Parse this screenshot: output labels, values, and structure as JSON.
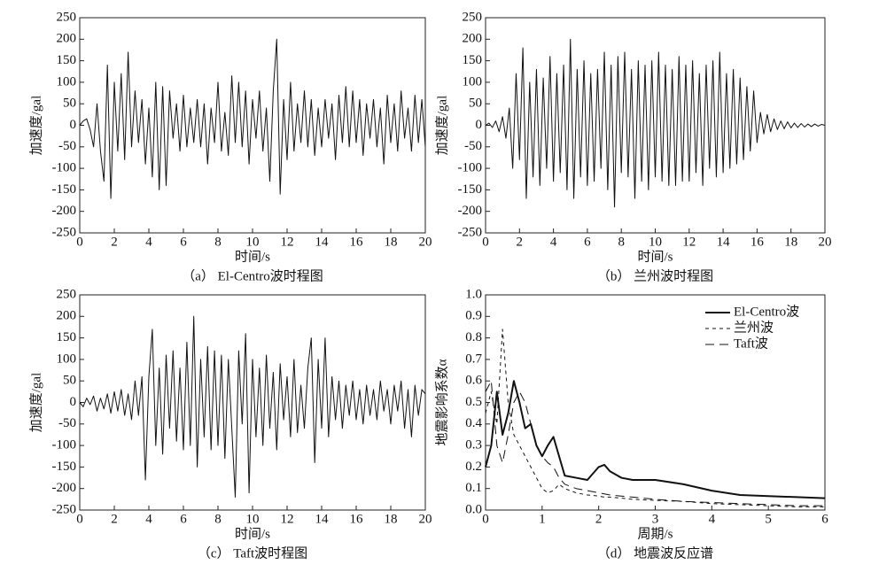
{
  "chart_data": [
    {
      "type": "line",
      "caption": "（a） El-Centro波时程图",
      "xlabel": "时间/s",
      "ylabel": "加速度/gal",
      "color": "#111",
      "xlim": [
        0,
        20
      ],
      "xticks": [
        0,
        2,
        4,
        6,
        8,
        10,
        12,
        14,
        16,
        18,
        20
      ],
      "ylim": [
        -250,
        250
      ],
      "yticks": [
        -250,
        -200,
        -150,
        -100,
        -50,
        0,
        50,
        100,
        150,
        200,
        250
      ],
      "x": [
        0,
        0.2,
        0.4,
        0.6,
        0.8,
        1,
        1.2,
        1.4,
        1.6,
        1.8,
        2,
        2.2,
        2.4,
        2.6,
        2.8,
        3,
        3.2,
        3.4,
        3.6,
        3.8,
        4,
        4.2,
        4.4,
        4.6,
        4.8,
        5,
        5.2,
        5.4,
        5.6,
        5.8,
        6,
        6.2,
        6.4,
        6.6,
        6.8,
        7,
        7.2,
        7.4,
        7.6,
        7.8,
        8,
        8.2,
        8.4,
        8.6,
        8.8,
        9,
        9.2,
        9.4,
        9.6,
        9.8,
        10,
        10.2,
        10.4,
        10.6,
        10.8,
        11,
        11.2,
        11.4,
        11.6,
        11.8,
        12,
        12.2,
        12.4,
        12.6,
        12.8,
        13,
        13.2,
        13.4,
        13.6,
        13.8,
        14,
        14.2,
        14.4,
        14.6,
        14.8,
        15,
        15.2,
        15.4,
        15.6,
        15.8,
        16,
        16.2,
        16.4,
        16.6,
        16.8,
        17,
        17.2,
        17.4,
        17.6,
        17.8,
        18,
        18.2,
        18.4,
        18.6,
        18.8,
        19,
        19.2,
        19.4,
        19.6,
        19.8,
        20
      ],
      "values": [
        0,
        10,
        15,
        -10,
        -50,
        50,
        -60,
        -130,
        140,
        -170,
        100,
        -60,
        120,
        -80,
        170,
        -50,
        80,
        -40,
        60,
        -90,
        40,
        -120,
        100,
        -150,
        90,
        -140,
        80,
        -30,
        50,
        -60,
        70,
        -50,
        40,
        -40,
        60,
        -50,
        50,
        -90,
        40,
        -40,
        100,
        -60,
        30,
        -70,
        115,
        -40,
        100,
        -50,
        80,
        -90,
        60,
        -30,
        80,
        -60,
        40,
        -130,
        80,
        200,
        -160,
        60,
        -80,
        100,
        -60,
        50,
        -40,
        80,
        -50,
        60,
        -70,
        40,
        -50,
        60,
        -30,
        50,
        -80,
        70,
        -40,
        90,
        -50,
        80,
        -40,
        60,
        -70,
        50,
        -30,
        60,
        -50,
        40,
        -90,
        70,
        -40,
        50,
        -60,
        80,
        -30,
        40,
        -60,
        70,
        -40,
        60,
        -50
      ]
    },
    {
      "type": "line",
      "caption": "（b） 兰州波时程图",
      "xlabel": "时间/s",
      "ylabel": "加速度/gal",
      "color": "#111",
      "xlim": [
        0,
        20
      ],
      "xticks": [
        0,
        2,
        4,
        6,
        8,
        10,
        12,
        14,
        16,
        18,
        20
      ],
      "ylim": [
        -250,
        250
      ],
      "yticks": [
        -250,
        -200,
        -150,
        -100,
        -50,
        0,
        50,
        100,
        150,
        200,
        250
      ],
      "x": [
        0,
        0.2,
        0.4,
        0.6,
        0.8,
        1,
        1.2,
        1.4,
        1.6,
        1.8,
        2,
        2.2,
        2.4,
        2.6,
        2.8,
        3,
        3.2,
        3.4,
        3.6,
        3.8,
        4,
        4.2,
        4.4,
        4.6,
        4.8,
        5,
        5.2,
        5.4,
        5.6,
        5.8,
        6,
        6.2,
        6.4,
        6.6,
        6.8,
        7,
        7.2,
        7.4,
        7.6,
        7.8,
        8,
        8.2,
        8.4,
        8.6,
        8.8,
        9,
        9.2,
        9.4,
        9.6,
        9.8,
        10,
        10.2,
        10.4,
        10.6,
        10.8,
        11,
        11.2,
        11.4,
        11.6,
        11.8,
        12,
        12.2,
        12.4,
        12.6,
        12.8,
        13,
        13.2,
        13.4,
        13.6,
        13.8,
        14,
        14.2,
        14.4,
        14.6,
        14.8,
        15,
        15.2,
        15.4,
        15.6,
        15.8,
        16,
        16.2,
        16.4,
        16.6,
        16.8,
        17,
        17.2,
        17.4,
        17.6,
        17.8,
        18,
        18.2,
        18.4,
        18.6,
        18.8,
        19,
        19.2,
        19.4,
        19.6,
        19.8,
        20
      ],
      "values": [
        0,
        5,
        -5,
        10,
        -15,
        20,
        -30,
        40,
        -100,
        120,
        -80,
        180,
        -170,
        100,
        -120,
        130,
        -140,
        110,
        -100,
        160,
        -130,
        120,
        -110,
        140,
        -150,
        200,
        -170,
        130,
        -120,
        150,
        -140,
        120,
        -130,
        130,
        -100,
        170,
        -150,
        140,
        -190,
        160,
        -110,
        170,
        -120,
        130,
        -170,
        150,
        -130,
        140,
        -150,
        150,
        -120,
        170,
        -130,
        140,
        -140,
        130,
        -140,
        160,
        -130,
        140,
        -130,
        150,
        -110,
        120,
        -140,
        140,
        -100,
        150,
        -120,
        170,
        -110,
        120,
        -100,
        130,
        -90,
        110,
        -80,
        90,
        -60,
        80,
        -40,
        30,
        -20,
        25,
        -15,
        15,
        -10,
        10,
        -8,
        8,
        -6,
        5,
        -5,
        4,
        -4,
        3,
        -3,
        3,
        -2,
        2,
        0
      ]
    },
    {
      "type": "line",
      "caption": "（c） Taft波时程图",
      "xlabel": "时间/s",
      "ylabel": "加速度/gal",
      "color": "#111",
      "xlim": [
        0,
        20
      ],
      "xticks": [
        0,
        2,
        4,
        6,
        8,
        10,
        12,
        14,
        16,
        18,
        20
      ],
      "ylim": [
        -250,
        250
      ],
      "yticks": [
        -250,
        -200,
        -150,
        -100,
        -50,
        0,
        50,
        100,
        150,
        200,
        250
      ],
      "x": [
        0,
        0.2,
        0.4,
        0.6,
        0.8,
        1,
        1.2,
        1.4,
        1.6,
        1.8,
        2,
        2.2,
        2.4,
        2.6,
        2.8,
        3,
        3.2,
        3.4,
        3.6,
        3.8,
        4,
        4.2,
        4.4,
        4.6,
        4.8,
        5,
        5.2,
        5.4,
        5.6,
        5.8,
        6,
        6.2,
        6.4,
        6.6,
        6.8,
        7,
        7.2,
        7.4,
        7.6,
        7.8,
        8,
        8.2,
        8.4,
        8.6,
        8.8,
        9,
        9.2,
        9.4,
        9.6,
        9.8,
        10,
        10.2,
        10.4,
        10.6,
        10.8,
        11,
        11.2,
        11.4,
        11.6,
        11.8,
        12,
        12.2,
        12.4,
        12.6,
        12.8,
        13,
        13.2,
        13.4,
        13.6,
        13.8,
        14,
        14.2,
        14.4,
        14.6,
        14.8,
        15,
        15.2,
        15.4,
        15.6,
        15.8,
        16,
        16.2,
        16.4,
        16.6,
        16.8,
        17,
        17.2,
        17.4,
        17.6,
        17.8,
        18,
        18.2,
        18.4,
        18.6,
        18.8,
        19,
        19.2,
        19.4,
        19.6,
        19.8,
        20
      ],
      "values": [
        0,
        -10,
        10,
        -5,
        15,
        -20,
        10,
        -15,
        20,
        -25,
        25,
        -20,
        30,
        -30,
        20,
        -40,
        50,
        -30,
        60,
        -180,
        60,
        170,
        -100,
        80,
        -120,
        110,
        -60,
        120,
        -90,
        80,
        -110,
        140,
        -100,
        200,
        -150,
        100,
        -80,
        130,
        -110,
        120,
        -100,
        110,
        -130,
        100,
        -60,
        -220,
        120,
        -50,
        160,
        -210,
        100,
        -80,
        80,
        -100,
        110,
        -60,
        70,
        -110,
        90,
        -40,
        60,
        -80,
        100,
        -70,
        40,
        -60,
        80,
        150,
        -140,
        100,
        -60,
        150,
        -80,
        60,
        -40,
        50,
        -60,
        40,
        -30,
        50,
        -40,
        30,
        -50,
        40,
        -30,
        30,
        -40,
        50,
        -20,
        30,
        -50,
        40,
        -20,
        50,
        -60,
        30,
        -80,
        40,
        -30,
        30,
        20
      ]
    },
    {
      "type": "line",
      "caption": "（d） 地震波反应谱",
      "xlabel": "周期/s",
      "ylabel": "地震影响系数α",
      "legend": "upper right",
      "xlim": [
        0,
        6
      ],
      "xticks": [
        0,
        1,
        2,
        3,
        4,
        5,
        6
      ],
      "ylim": [
        0,
        1
      ],
      "yticks": [
        {
          "value": 0,
          "label": "0.0"
        },
        0.1,
        0.2,
        0.3,
        0.4,
        0.5,
        0.6,
        0.7,
        0.8,
        0.9,
        {
          "value": 1,
          "label": "1.0"
        }
      ],
      "x": [
        0,
        0.1,
        0.2,
        0.3,
        0.4,
        0.5,
        0.6,
        0.7,
        0.8,
        0.9,
        1,
        1.1,
        1.2,
        1.3,
        1.4,
        1.6,
        1.8,
        2,
        2.1,
        2.2,
        2.4,
        2.6,
        3,
        3.5,
        4,
        4.5,
        5,
        5.5,
        6
      ],
      "series": [
        {
          "name": "El-Centro波",
          "color": "#111",
          "dash": "solid",
          "values": [
            0.2,
            0.3,
            0.55,
            0.35,
            0.45,
            0.6,
            0.5,
            0.38,
            0.4,
            0.3,
            0.25,
            0.3,
            0.34,
            0.25,
            0.16,
            0.15,
            0.14,
            0.2,
            0.21,
            0.18,
            0.15,
            0.14,
            0.14,
            0.12,
            0.09,
            0.07,
            0.065,
            0.06,
            0.055
          ]
        },
        {
          "name": "兰州波",
          "color": "#111",
          "dash": "dashed",
          "values": [
            0.45,
            0.55,
            0.4,
            0.84,
            0.5,
            0.35,
            0.3,
            0.25,
            0.2,
            0.15,
            0.1,
            0.08,
            0.09,
            0.12,
            0.1,
            0.08,
            0.07,
            0.065,
            0.06,
            0.06,
            0.055,
            0.05,
            0.045,
            0.04,
            0.03,
            0.025,
            0.02,
            0.015,
            0.015
          ]
        },
        {
          "name": "Taft波",
          "color": "#111",
          "dash": "longdash",
          "values": [
            0.55,
            0.6,
            0.3,
            0.22,
            0.35,
            0.5,
            0.55,
            0.5,
            0.4,
            0.3,
            0.25,
            0.22,
            0.2,
            0.15,
            0.12,
            0.1,
            0.09,
            0.08,
            0.075,
            0.07,
            0.065,
            0.06,
            0.05,
            0.04,
            0.035,
            0.03,
            0.025,
            0.02,
            0.02
          ]
        }
      ]
    }
  ]
}
